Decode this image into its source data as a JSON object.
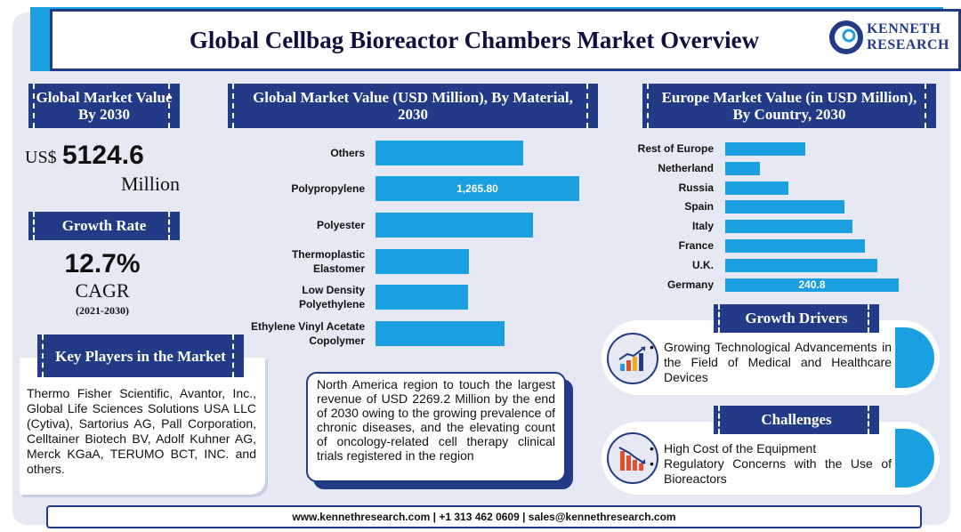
{
  "title": "Global Cellbag Bioreactor Chambers Market Overview",
  "logo": {
    "line1": "KENNETH",
    "line2": "RESEARCH"
  },
  "market_value": {
    "heading": "Global Market Value By 2030",
    "currency": "US$",
    "value": "5124.6",
    "unit": "Million"
  },
  "growth": {
    "heading": "Growth Rate",
    "value": "12.7%",
    "label": "CAGR",
    "period": "(2021-2030)"
  },
  "key_players": {
    "heading": "Key Players in the Market",
    "text": "Thermo Fisher Scientific, Avantor, Inc., Global Life Sciences Solutions USA LLC (Cytiva), Sartorius AG, Pall Corporation, Celltainer Biotech BV, Adolf Kuhner AG, Merck KGaA, TERUMO BCT, INC. and others."
  },
  "north_america_note": "North America region to touch the largest revenue of USD 2269.2 Million by the end of 2030 owing to the growing prevalence of chronic diseases, and the elevating count of oncology-related cell therapy clinical trials registered in the region",
  "growth_drivers": {
    "heading": "Growth Drivers",
    "items": [
      "Growing Technological Advancements in the Field of Medical and Healthcare Devices"
    ]
  },
  "challenges": {
    "heading": "Challenges",
    "items": [
      "High Cost of the Equipment",
      "Regulatory Concerns with the Use of Bioreactors"
    ]
  },
  "footer": "www.kennethresearch.com | +1 313 462 0609 | sales@kennethresearch.com",
  "colors": {
    "navy": "#233b87",
    "bar": "#1a9fe0",
    "background": "#e6e9f3"
  },
  "chart_data": [
    {
      "type": "bar",
      "orientation": "horizontal",
      "title": "Global Market Value (USD Million), By Material, 2030",
      "categories": [
        "Others",
        "Polypropylene",
        "Polyester",
        "Thermoplastic Elastomer",
        "Low Density Polyethylene",
        "Ethylene Vinyl Acetate Copolymer"
      ],
      "category_lines": [
        [
          "Others"
        ],
        [
          "Polypropylene"
        ],
        [
          "Polyester"
        ],
        [
          "Thermoplastic",
          "Elastomer"
        ],
        [
          "Low Density",
          "Polyethylene"
        ],
        [
          "Ethylene Vinyl Acetate",
          "Copolymer"
        ]
      ],
      "values": [
        920,
        1265.8,
        980,
        580,
        575,
        800
      ],
      "data_labels": [
        "",
        "1,265.80",
        "",
        "",
        "",
        ""
      ],
      "xlim": [
        0,
        1265.8
      ]
    },
    {
      "type": "bar",
      "orientation": "horizontal",
      "title": "Europe Market Value (in USD Million), By Country, 2030",
      "categories": [
        "Rest of Europe",
        "Netherland",
        "Russia",
        "Spain",
        "Italy",
        "France",
        "U.K.",
        "Germany"
      ],
      "values": [
        111,
        48,
        88,
        166,
        177,
        194,
        211,
        240.8
      ],
      "data_labels": [
        "",
        "",
        "",
        "",
        "",
        "",
        "",
        "240.8"
      ],
      "xlim": [
        0,
        240.8
      ]
    }
  ]
}
